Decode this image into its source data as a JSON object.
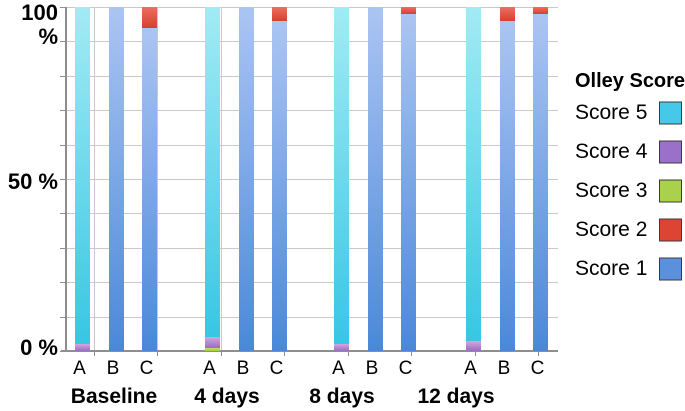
{
  "chart_data": {
    "type": "bar",
    "stacked": true,
    "unit": "%",
    "ylim": [
      0,
      100
    ],
    "grid": {
      "horizontal_every_pct": 10,
      "color": "#c9c9c9"
    },
    "y_axis": {
      "ticks": [
        {
          "value": 100,
          "label": "100 %"
        },
        {
          "value": 50,
          "label": "50 %"
        },
        {
          "value": 0,
          "label": "0 %"
        }
      ]
    },
    "groups": [
      {
        "label": "Baseline",
        "bars": [
          {
            "label": "A",
            "segments": [
              {
                "score": "Score 4",
                "pct": 2
              },
              {
                "score": "Score 5",
                "pct": 98
              }
            ]
          },
          {
            "label": "B",
            "segments": [
              {
                "score": "Score 1",
                "pct": 100
              }
            ]
          },
          {
            "label": "C",
            "segments": [
              {
                "score": "Score 1",
                "pct": 94
              },
              {
                "score": "Score 2",
                "pct": 6
              }
            ]
          }
        ]
      },
      {
        "label": "4 days",
        "bars": [
          {
            "label": "A",
            "segments": [
              {
                "score": "Score 3",
                "pct": 1
              },
              {
                "score": "Score 4",
                "pct": 3
              },
              {
                "score": "Score 5",
                "pct": 96
              }
            ]
          },
          {
            "label": "B",
            "segments": [
              {
                "score": "Score 1",
                "pct": 100
              }
            ]
          },
          {
            "label": "C",
            "segments": [
              {
                "score": "Score 1",
                "pct": 96
              },
              {
                "score": "Score 2",
                "pct": 4
              }
            ]
          }
        ]
      },
      {
        "label": "8 days",
        "bars": [
          {
            "label": "A",
            "segments": [
              {
                "score": "Score 4",
                "pct": 2
              },
              {
                "score": "Score 5",
                "pct": 98
              }
            ]
          },
          {
            "label": "B",
            "segments": [
              {
                "score": "Score 1",
                "pct": 100
              }
            ]
          },
          {
            "label": "C",
            "segments": [
              {
                "score": "Score 1",
                "pct": 98
              },
              {
                "score": "Score 2",
                "pct": 2
              }
            ]
          }
        ]
      },
      {
        "label": "12 days",
        "bars": [
          {
            "label": "A",
            "segments": [
              {
                "score": "Score 4",
                "pct": 3
              },
              {
                "score": "Score 5",
                "pct": 97
              }
            ]
          },
          {
            "label": "B",
            "segments": [
              {
                "score": "Score 1",
                "pct": 96
              },
              {
                "score": "Score 2",
                "pct": 4
              }
            ]
          },
          {
            "label": "C",
            "segments": [
              {
                "score": "Score 1",
                "pct": 98
              },
              {
                "score": "Score 2",
                "pct": 2
              }
            ]
          }
        ]
      }
    ],
    "legend": {
      "title": "Olley Score",
      "position": "right",
      "entries": [
        {
          "label": "Score 5",
          "color": "#46c8e8"
        },
        {
          "label": "Score 4",
          "color": "#9a70c8"
        },
        {
          "label": "Score 3",
          "color": "#a9d14b"
        },
        {
          "label": "Score 2",
          "color": "#dd4434"
        },
        {
          "label": "Score 1",
          "color": "#5b90dc"
        }
      ]
    },
    "colors": {
      "Score 5": {
        "top": "#a2ebf4",
        "bottom": "#38c6e4"
      },
      "Score 4": {
        "top": "#d4a6da",
        "bottom": "#9a6cc5"
      },
      "Score 3": {
        "top": "#c0dc6a",
        "bottom": "#a4ce40"
      },
      "Score 2": {
        "top": "#ec6f60",
        "bottom": "#d6402e"
      },
      "Score 1": {
        "top": "#abc5f2",
        "bottom": "#4b88d9"
      }
    }
  }
}
